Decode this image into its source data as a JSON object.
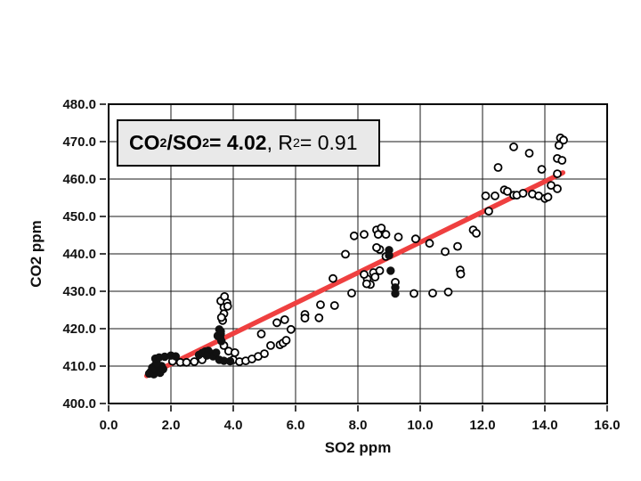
{
  "slide": {
    "background": "#ffffff"
  },
  "annotation": {
    "box_bg": "#e9e9e9",
    "border_color": "#000000",
    "segments": [
      {
        "text": "CO",
        "bold": true
      },
      {
        "text": "2",
        "bold": true,
        "script": "sub"
      },
      {
        "text": "/SO",
        "bold": true
      },
      {
        "text": "2",
        "bold": true,
        "script": "sub"
      },
      {
        "text": " = 4.02",
        "bold": true
      },
      {
        "text": ", R",
        "bold": false
      },
      {
        "text": "2",
        "bold": false,
        "script": "sup"
      },
      {
        "text": " = 0.91",
        "bold": false
      }
    ]
  },
  "chart_data": {
    "type": "scatter",
    "title": "",
    "xlabel": "SO2 ppm",
    "ylabel": "CO2 ppm",
    "xlim": [
      0,
      16
    ],
    "ylim": [
      400,
      480
    ],
    "grid": true,
    "frame_color": "#000000",
    "grid_color": "#1a1a1a",
    "xticks": [
      0,
      2,
      4,
      6,
      8,
      10,
      12,
      14,
      16
    ],
    "xtick_labels": [
      "0.0",
      "2.0",
      "4.0",
      "6.0",
      "8.0",
      "10.0",
      "12.0",
      "14.0",
      "16.0"
    ],
    "yticks": [
      400,
      410,
      420,
      430,
      440,
      450,
      460,
      470,
      480
    ],
    "ytick_labels": [
      "400.0",
      "410.0",
      "420.0",
      "430.0",
      "440.0",
      "450.0",
      "460.0",
      "470.0",
      "480.0"
    ],
    "trendline": {
      "x1": 1.22,
      "y1": 407.4,
      "x2": 14.58,
      "y2": 461.7,
      "color": "#ef4040",
      "width": 5.5
    },
    "series": [
      {
        "name": "open-circles",
        "marker": "circle-open",
        "color": "#000000",
        "points": [
          [
            2.05,
            411.3
          ],
          [
            2.3,
            411.0
          ],
          [
            2.5,
            411.0
          ],
          [
            2.75,
            411.2
          ],
          [
            3.0,
            411.7
          ],
          [
            3.7,
            415.5
          ],
          [
            3.85,
            414.0
          ],
          [
            4.05,
            413.6
          ],
          [
            4.0,
            411.7
          ],
          [
            4.2,
            411.2
          ],
          [
            4.4,
            411.4
          ],
          [
            4.6,
            411.9
          ],
          [
            4.8,
            412.6
          ],
          [
            5.0,
            413.3
          ],
          [
            5.2,
            415.5
          ],
          [
            5.5,
            415.7
          ],
          [
            4.9,
            418.6
          ],
          [
            5.4,
            421.6
          ],
          [
            5.65,
            422.4
          ],
          [
            5.85,
            419.8
          ],
          [
            5.6,
            416.2
          ],
          [
            5.7,
            416.9
          ],
          [
            3.6,
            427.4
          ],
          [
            3.72,
            428.6
          ],
          [
            3.8,
            426.9
          ],
          [
            3.7,
            425.7
          ],
          [
            3.82,
            426.0
          ],
          [
            3.7,
            424.0
          ],
          [
            3.66,
            422.2
          ],
          [
            3.62,
            423.0
          ],
          [
            6.3,
            423.8
          ],
          [
            6.3,
            422.8
          ],
          [
            6.75,
            422.9
          ],
          [
            6.8,
            426.4
          ],
          [
            7.25,
            426.2
          ],
          [
            7.2,
            433.4
          ],
          [
            7.8,
            429.5
          ],
          [
            8.3,
            433.3
          ],
          [
            8.2,
            434.5
          ],
          [
            8.5,
            435.0
          ],
          [
            8.7,
            435.5
          ],
          [
            8.4,
            431.8
          ],
          [
            8.55,
            433.8
          ],
          [
            8.28,
            432.0
          ],
          [
            9.2,
            432.4
          ],
          [
            9.8,
            429.4
          ],
          [
            10.4,
            429.5
          ],
          [
            10.9,
            429.8
          ],
          [
            11.28,
            435.7
          ],
          [
            11.3,
            434.6
          ],
          [
            7.6,
            439.9
          ],
          [
            8.7,
            441.2
          ],
          [
            8.9,
            439.3
          ],
          [
            8.6,
            441.7
          ],
          [
            10.3,
            442.8
          ],
          [
            10.8,
            440.6
          ],
          [
            11.2,
            442.0
          ],
          [
            7.88,
            444.8
          ],
          [
            8.2,
            445.2
          ],
          [
            8.6,
            446.4
          ],
          [
            8.75,
            446.9
          ],
          [
            8.65,
            445.2
          ],
          [
            8.9,
            445.2
          ],
          [
            9.3,
            444.5
          ],
          [
            9.85,
            444.0
          ],
          [
            11.7,
            446.4
          ],
          [
            11.8,
            445.5
          ],
          [
            12.2,
            451.4
          ],
          [
            12.1,
            455.5
          ],
          [
            12.4,
            455.5
          ],
          [
            12.7,
            457.1
          ],
          [
            12.8,
            456.7
          ],
          [
            13.0,
            455.7
          ],
          [
            13.1,
            455.7
          ],
          [
            13.3,
            456.2
          ],
          [
            13.6,
            456.0
          ],
          [
            13.8,
            455.5
          ],
          [
            14.0,
            454.8
          ],
          [
            14.1,
            455.2
          ],
          [
            12.5,
            463.1
          ],
          [
            13.9,
            462.6
          ],
          [
            14.2,
            458.3
          ],
          [
            14.4,
            457.4
          ],
          [
            14.4,
            461.4
          ],
          [
            13.0,
            468.6
          ],
          [
            13.5,
            466.9
          ],
          [
            14.4,
            465.5
          ],
          [
            14.55,
            465.0
          ],
          [
            14.5,
            471.0
          ],
          [
            14.6,
            470.4
          ],
          [
            14.45,
            469.0
          ]
        ]
      },
      {
        "name": "filled-circles",
        "marker": "circle-filled",
        "color": "#111111",
        "points": [
          [
            1.35,
            408.5
          ],
          [
            1.4,
            409.6
          ],
          [
            1.45,
            407.8
          ],
          [
            1.5,
            410.3
          ],
          [
            1.55,
            408.8
          ],
          [
            1.6,
            409.8
          ],
          [
            1.65,
            408.2
          ],
          [
            1.7,
            410.0
          ],
          [
            1.75,
            409.2
          ],
          [
            1.42,
            409.0
          ],
          [
            1.3,
            408.0
          ],
          [
            1.55,
            410.6
          ],
          [
            1.5,
            412.0
          ],
          [
            1.62,
            412.3
          ],
          [
            1.8,
            412.5
          ],
          [
            2.0,
            412.8
          ],
          [
            2.15,
            412.6
          ],
          [
            2.9,
            413.0
          ],
          [
            3.0,
            413.5
          ],
          [
            3.1,
            413.9
          ],
          [
            3.2,
            414.1
          ],
          [
            3.3,
            413.3
          ],
          [
            3.35,
            412.6
          ],
          [
            3.15,
            412.8
          ],
          [
            3.45,
            413.6
          ],
          [
            3.55,
            419.8
          ],
          [
            3.6,
            418.6
          ],
          [
            3.58,
            417.6
          ],
          [
            3.62,
            416.7
          ],
          [
            3.5,
            418.1
          ],
          [
            3.6,
            419.3
          ],
          [
            3.55,
            411.7
          ],
          [
            3.7,
            411.4
          ],
          [
            3.9,
            411.3
          ],
          [
            9.0,
            441.0
          ],
          [
            9.0,
            439.6
          ],
          [
            9.05,
            435.5
          ],
          [
            9.2,
            431.0
          ],
          [
            9.2,
            429.4
          ]
        ]
      }
    ]
  }
}
